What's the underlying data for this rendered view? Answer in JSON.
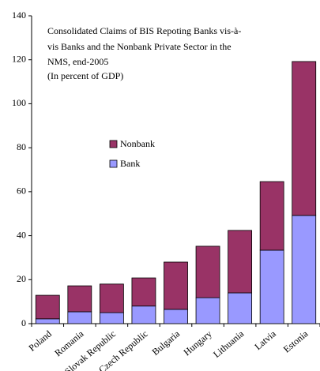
{
  "chart_data": {
    "type": "stacked_bar",
    "title": [
      "Consolidated Claims of BIS Repoting Banks vis-à-",
      "vis Banks and the Nonbank Private Sector in the",
      "NMS, end-2005",
      "(In percent of GDP)"
    ],
    "categories": [
      "Poland",
      "Romania",
      "Slovak Republic",
      "Czech Republic",
      "Bulgaria",
      "Hungary",
      "Lithuania",
      "Latvia",
      "Estonia"
    ],
    "series": [
      {
        "name": "Bank",
        "color": "#9999ff",
        "values": [
          2.2,
          5.4,
          5,
          8,
          6.5,
          11.8,
          14,
          33.4,
          49.2
        ]
      },
      {
        "name": "Nonbank",
        "color": "#993366",
        "values": [
          10.7,
          11.8,
          13,
          12.8,
          21.5,
          23.4,
          28.4,
          31.2,
          70
        ]
      }
    ],
    "ylim": [
      0,
      140
    ],
    "yticks": [
      0,
      20,
      40,
      60,
      80,
      100,
      120,
      140
    ]
  }
}
